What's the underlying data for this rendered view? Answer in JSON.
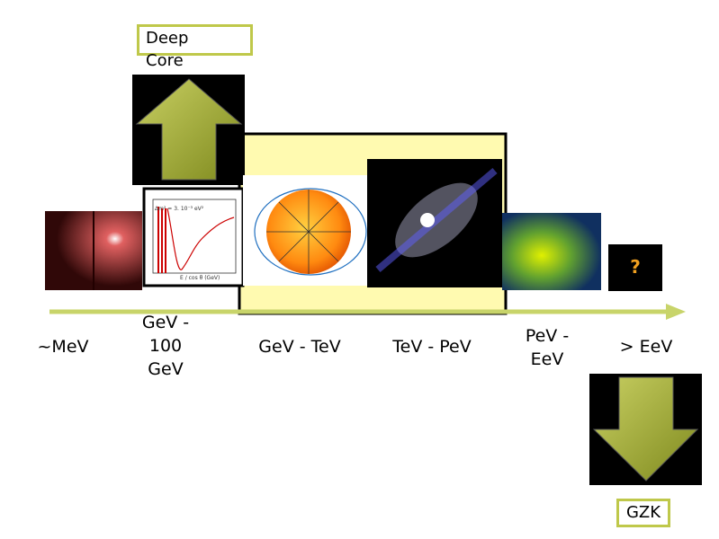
{
  "deep_core": "Deep Core",
  "energy_labels": [
    "~MeV",
    "GeV - 100 GeV",
    "GeV - TeV",
    "TeV - PeV",
    "PeV - EeV",
    "> EeV"
  ],
  "unknown": "?",
  "gzk": "GZK",
  "plot": {
    "legend": "Δm² = 3. 10⁻³ eV²",
    "x_label": "E / cos θ (GeV)"
  }
}
